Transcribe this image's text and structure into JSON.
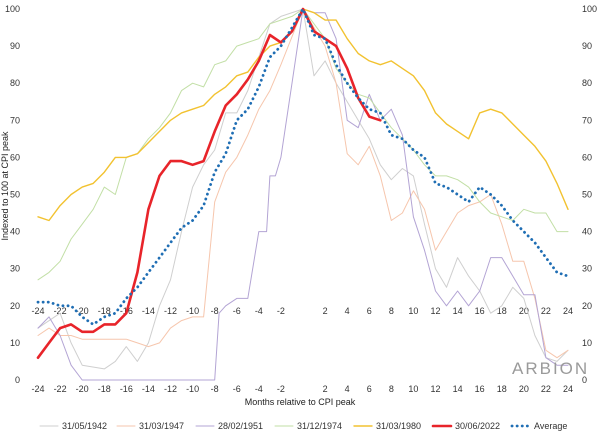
{
  "brand": "ARBION",
  "chart_data": {
    "type": "line",
    "title": "",
    "xlabel": "Months relative to CPI peak",
    "ylabel": "Indexed to 100 at CPI peak",
    "xlim": [
      -24,
      24
    ],
    "ylim": [
      0,
      100
    ],
    "x_ticks_bottom": [
      -24,
      -22,
      -20,
      -18,
      -16,
      -14,
      -12,
      -10,
      -8,
      -6,
      -4,
      -2,
      2,
      4,
      6,
      8,
      10,
      12,
      14,
      16,
      18,
      20,
      22,
      24
    ],
    "x_ticks_middle": [
      -24,
      -22,
      -20,
      -18,
      -16,
      -14,
      -12,
      -10,
      -8,
      -6,
      -4,
      -2,
      2,
      4,
      6,
      8,
      10,
      12,
      14,
      16,
      18,
      20,
      22,
      24
    ],
    "y_ticks": [
      0,
      10,
      20,
      30,
      40,
      50,
      60,
      70,
      80,
      90,
      100
    ],
    "grid": false,
    "legend_position": "bottom",
    "series": [
      {
        "name": "31/05/1942",
        "color": "#cfcfcf",
        "width": 1,
        "dash": "",
        "x": [
          -24,
          -22,
          -21,
          -20,
          -18,
          -17,
          -16,
          -15,
          -14,
          -13,
          -12,
          -11,
          -10,
          -9,
          -8,
          -7,
          -6,
          -5,
          -4,
          -3,
          -2,
          0,
          1,
          2,
          3,
          4,
          5,
          6,
          7,
          8,
          9,
          10,
          11,
          12,
          13,
          14,
          15,
          16,
          17,
          18,
          19,
          20,
          21,
          22,
          23,
          24
        ],
        "y": [
          14,
          18,
          10,
          4,
          3,
          5,
          9,
          5,
          10,
          20,
          27,
          40,
          52,
          58,
          62,
          72,
          72,
          78,
          87,
          96,
          98,
          100,
          82,
          86,
          80,
          75,
          70,
          65,
          58,
          54,
          57,
          55,
          42,
          30,
          25,
          33,
          28,
          24,
          18,
          20,
          25,
          22,
          12,
          6,
          5,
          8
        ]
      },
      {
        "name": "31/03/1947",
        "color": "#f6c6ad",
        "width": 1,
        "dash": "",
        "x": [
          -24,
          -23,
          -22,
          -21,
          -20,
          -19,
          -18,
          -17,
          -16,
          -15,
          -14,
          -13,
          -12,
          -11,
          -10,
          -9,
          -8,
          -7,
          -6,
          -5,
          -4,
          -3,
          -2,
          0,
          1,
          2,
          3,
          4,
          5,
          6,
          7,
          8,
          9,
          10,
          11,
          12,
          13,
          14,
          15,
          16,
          17,
          18,
          19,
          20,
          21,
          22,
          23,
          24
        ],
        "y": [
          12,
          14,
          12,
          12,
          11,
          11,
          11,
          11,
          11,
          10,
          9,
          10,
          14,
          16,
          17,
          17,
          48,
          56,
          60,
          66,
          73,
          78,
          85,
          100,
          95,
          90,
          80,
          61,
          58,
          63,
          55,
          43,
          45,
          51,
          46,
          35,
          40,
          45,
          47,
          48,
          50,
          42,
          32,
          32,
          22,
          8,
          6,
          8
        ]
      },
      {
        "name": "28/02/1951",
        "color": "#b3a4d4",
        "width": 1,
        "dash": "",
        "x": [
          -24,
          -23,
          -22,
          -21,
          -20,
          -18,
          -16,
          -14,
          -12,
          -10,
          -8,
          -7.6,
          -7,
          -6,
          -5,
          -4,
          -3.3,
          -3,
          -2.5,
          -2,
          -1,
          0,
          1,
          2,
          3,
          4,
          5,
          6,
          7,
          8,
          9,
          10,
          11,
          12,
          13,
          14,
          15,
          16,
          17,
          18,
          19,
          20,
          21,
          22,
          23,
          24
        ],
        "y": [
          14,
          17,
          12,
          4,
          0,
          0,
          0,
          0,
          0,
          0,
          0,
          18,
          20,
          22,
          22,
          40,
          40,
          55,
          55,
          60,
          80,
          100,
          99,
          99,
          92,
          70,
          68,
          77,
          70,
          73,
          66,
          44,
          35,
          24,
          20,
          24,
          20,
          24,
          33,
          33,
          28,
          23,
          23,
          6,
          4,
          4
        ]
      },
      {
        "name": "31/12/1974",
        "color": "#c2dfa6",
        "width": 1,
        "dash": "",
        "x": [
          -24,
          -23,
          -22,
          -21,
          -20,
          -19,
          -18,
          -17,
          -16,
          -15,
          -14,
          -13,
          -12,
          -11,
          -10,
          -9,
          -8,
          -7,
          -6,
          -5,
          -4,
          -3,
          -2,
          -1,
          0,
          1,
          2,
          3,
          4,
          5,
          6,
          7,
          8,
          9,
          10,
          11,
          12,
          13,
          14,
          15,
          16,
          17,
          18,
          19,
          20,
          21,
          22,
          23,
          24
        ],
        "y": [
          27,
          29,
          32,
          38,
          42,
          46,
          52,
          50,
          60,
          61,
          65,
          68,
          72,
          78,
          80,
          79,
          85,
          86,
          90,
          91,
          92,
          96,
          97,
          98,
          100,
          96,
          92,
          84,
          80,
          77,
          76,
          72,
          68,
          65,
          62,
          58,
          55,
          55,
          54,
          52,
          48,
          45,
          44,
          43,
          46,
          45,
          45,
          40,
          40
        ]
      },
      {
        "name": "31/03/1980",
        "color": "#f2c230",
        "width": 1.4,
        "dash": "",
        "x": [
          -24,
          -23,
          -22,
          -21,
          -20,
          -19,
          -18,
          -17,
          -16,
          -15,
          -14,
          -13,
          -12,
          -11,
          -10,
          -9,
          -8,
          -7,
          -6,
          -5,
          -4,
          -3,
          -2,
          -1,
          0,
          1,
          2,
          3,
          4,
          5,
          6,
          7,
          8,
          9,
          10,
          11,
          12,
          13,
          14,
          15,
          16,
          17,
          18,
          19,
          20,
          21,
          22,
          23,
          24
        ],
        "y": [
          44,
          43,
          47,
          50,
          52,
          53,
          56,
          60,
          60,
          61,
          64,
          67,
          70,
          72,
          73,
          74,
          77,
          79,
          82,
          83,
          87,
          90,
          91,
          94,
          100,
          99,
          97,
          97,
          92,
          88,
          86,
          85,
          86,
          84,
          82,
          78,
          72,
          69,
          67,
          65,
          72,
          73,
          72,
          69,
          66,
          63,
          59,
          53,
          46
        ]
      },
      {
        "name": "30/06/2022",
        "color": "#e8242a",
        "width": 2.6,
        "dash": "",
        "x": [
          -24,
          -23,
          -22,
          -21,
          -20,
          -19,
          -18,
          -17,
          -16,
          -15,
          -14,
          -13,
          -12,
          -11,
          -10,
          -9,
          -8,
          -7,
          -6,
          -5,
          -4,
          -3,
          -2,
          -1,
          0,
          1,
          2,
          3,
          4,
          5,
          6,
          7
        ],
        "y": [
          6,
          10,
          14,
          15,
          13,
          13,
          15,
          15,
          18,
          29,
          46,
          55,
          59,
          59,
          58,
          59,
          67,
          74,
          77,
          81,
          86,
          93,
          91,
          94,
          100,
          94,
          92,
          90,
          84,
          76,
          71,
          70
        ]
      },
      {
        "name": "Average",
        "color": "#1f6eb4",
        "width": 2.8,
        "dash": "0.1 5",
        "x": [
          -24,
          -23,
          -22,
          -21,
          -20,
          -19,
          -18,
          -17,
          -16,
          -15,
          -14,
          -13,
          -12,
          -11,
          -10,
          -9,
          -8,
          -7,
          -6,
          -5,
          -4,
          -3,
          -2,
          -1,
          0,
          1,
          2,
          3,
          4,
          5,
          6,
          7,
          8,
          9,
          10,
          11,
          12,
          13,
          14,
          15,
          16,
          17,
          18,
          19,
          20,
          21,
          22,
          23,
          24
        ],
        "y": [
          21,
          21,
          20,
          20,
          17,
          15,
          17,
          18,
          22,
          25,
          29,
          33,
          37,
          41,
          43,
          47,
          56,
          61,
          70,
          73,
          79,
          87,
          90,
          95,
          100,
          93,
          92,
          85,
          80,
          76,
          73,
          72,
          66,
          65,
          62,
          60,
          53,
          52,
          50,
          48,
          52,
          50,
          47,
          43,
          40,
          37,
          33,
          29,
          28
        ]
      }
    ]
  }
}
